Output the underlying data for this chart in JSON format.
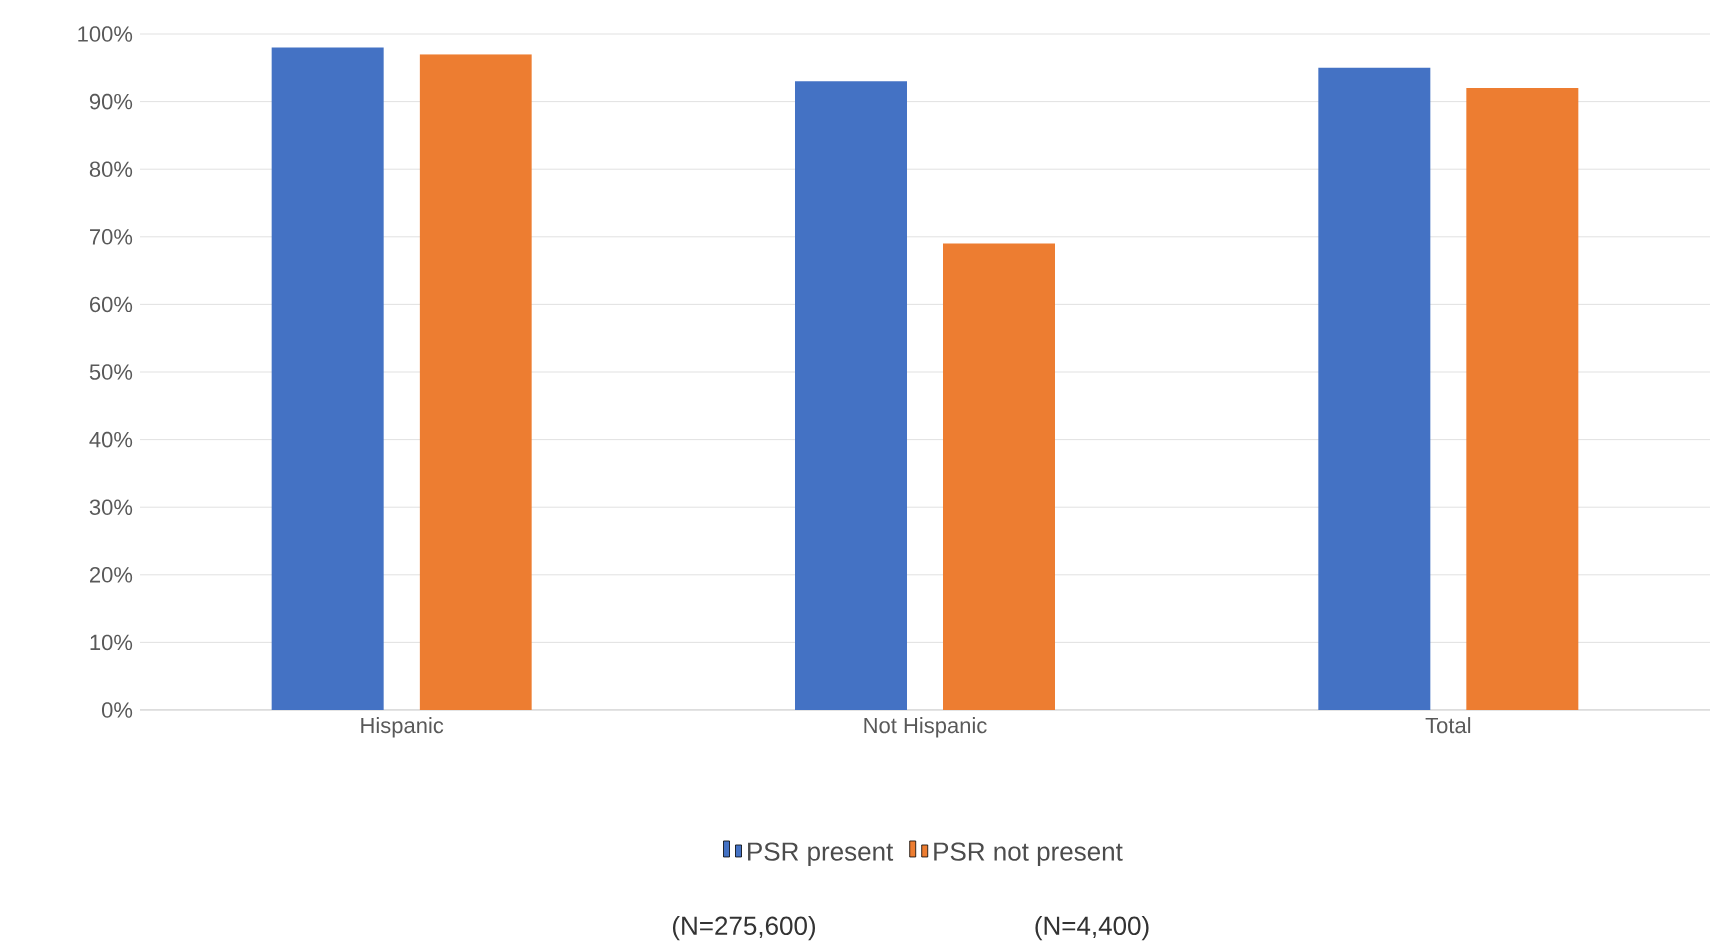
{
  "chart_data": {
    "type": "bar",
    "categories": [
      "Hispanic",
      "Not Hispanic",
      "Total"
    ],
    "series": [
      {
        "name": "PSR  present",
        "color": "#4472c4",
        "values": [
          98,
          93,
          95
        ]
      },
      {
        "name": "PSR not present",
        "color": "#ed7d31",
        "values": [
          97,
          69,
          92
        ]
      }
    ],
    "ylim": [
      0,
      100
    ],
    "yticks": [
      {
        "value": 0,
        "label": "0%"
      },
      {
        "value": 10,
        "label": "10%"
      },
      {
        "value": 20,
        "label": "20%"
      },
      {
        "value": 30,
        "label": "30%"
      },
      {
        "value": 40,
        "label": "40%"
      },
      {
        "value": 50,
        "label": "50%"
      },
      {
        "value": 60,
        "label": "60%"
      },
      {
        "value": 70,
        "label": "70%"
      },
      {
        "value": 80,
        "label": "80%"
      },
      {
        "value": 90,
        "label": "90%"
      },
      {
        "value": 100,
        "label": "100%"
      }
    ],
    "grid": "y",
    "legend": "bottom",
    "annotations": [
      "(N=275,600)",
      "(N=4,400)"
    ]
  }
}
